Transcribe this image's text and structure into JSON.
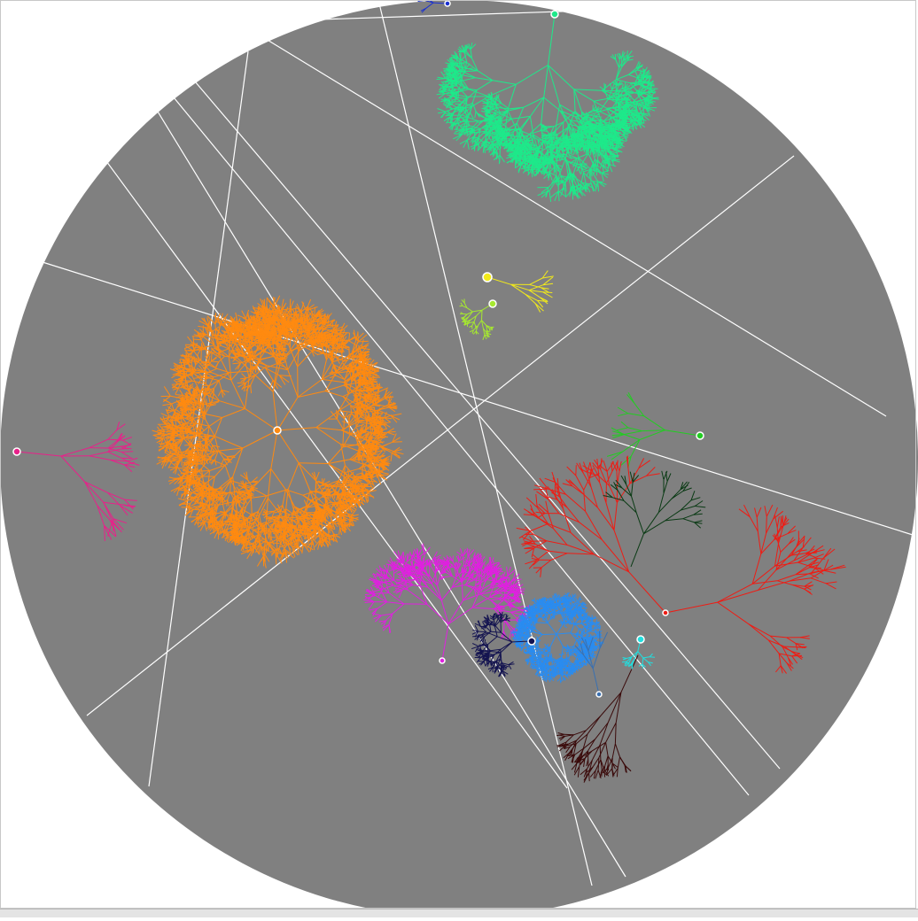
{
  "scene": {
    "background": "#ffffff",
    "disc_color": "#808080",
    "line_color": "#ffffff",
    "frame_color": "#c8c8c8",
    "strip_color": "#e4e4e4"
  },
  "trees": [
    {
      "name": "mint",
      "color": "#1ee98a",
      "seed": 11,
      "depth": 7,
      "spread": 0.55,
      "branches": 3
    },
    {
      "name": "orange",
      "color": "#ff8a10",
      "seed": 23,
      "depth": 6,
      "spread": 0.6,
      "branches": 3
    },
    {
      "name": "pink",
      "color": "#e8218a",
      "seed": 5,
      "depth": 5,
      "spread": 0.5,
      "branches": 2
    },
    {
      "name": "yellow",
      "color": "#f2ea1a",
      "seed": 7,
      "depth": 4,
      "spread": 0.5,
      "branches": 2
    },
    {
      "name": "lime",
      "color": "#a6e830",
      "seed": 9,
      "depth": 5,
      "spread": 0.7,
      "branches": 2
    },
    {
      "name": "green",
      "color": "#22cc22",
      "seed": 13,
      "depth": 4,
      "spread": 0.5,
      "branches": 2
    },
    {
      "name": "red",
      "color": "#ee1c14",
      "seed": 17,
      "depth": 6,
      "spread": 0.55,
      "branches": 2
    },
    {
      "name": "magenta",
      "color": "#e020e0",
      "seed": 19,
      "depth": 6,
      "spread": 0.5,
      "branches": 3
    },
    {
      "name": "dark-red",
      "color": "#3a0a0a",
      "seed": 29,
      "depth": 6,
      "spread": 0.45,
      "branches": 2
    },
    {
      "name": "dark-green",
      "color": "#0a3a14",
      "seed": 31,
      "depth": 5,
      "spread": 0.5,
      "branches": 2
    },
    {
      "name": "azure",
      "color": "#2a8cf0",
      "seed": 37,
      "depth": 6,
      "spread": 0.8,
      "branches": 3
    },
    {
      "name": "navy",
      "color": "#141450",
      "seed": 41,
      "depth": 5,
      "spread": 0.7,
      "branches": 3
    },
    {
      "name": "cyan",
      "color": "#20e0e0",
      "seed": 43,
      "depth": 4,
      "spread": 0.7,
      "branches": 2
    },
    {
      "name": "steel",
      "color": "#3a70b0",
      "seed": 47,
      "depth": 3,
      "spread": 0.4,
      "branches": 2
    },
    {
      "name": "blue",
      "color": "#1a30d0",
      "seed": 53,
      "depth": 3,
      "spread": 0.5,
      "branches": 2
    }
  ]
}
